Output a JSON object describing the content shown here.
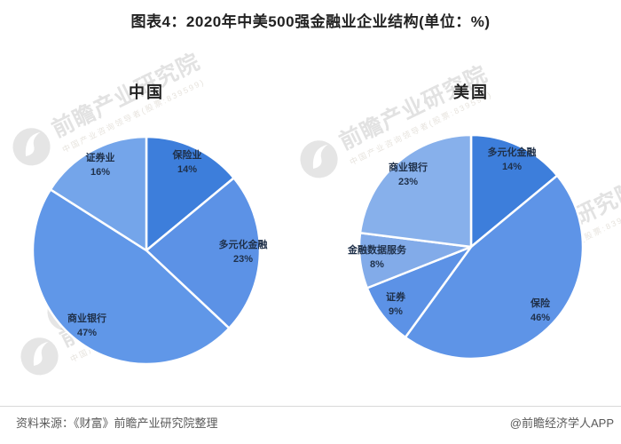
{
  "title": "图表4：2020年中美500强金融业企业结构(单位：%)",
  "watermark": {
    "brand": "前瞻产业研究院",
    "sub": "中国产业咨询领导者(股票:839599)"
  },
  "footer": {
    "source_note": "资料来源：《财富》前瞻产业研究院整理",
    "credit": "@前瞻经济学人APP"
  },
  "chart_data": [
    {
      "type": "pie",
      "title": "中国",
      "unit": "%",
      "direction": "clockwise",
      "start_angle_deg": 0,
      "labels": [
        "保险业",
        "多元化金融",
        "商业银行",
        "证券业"
      ],
      "values": [
        14,
        23,
        47,
        16
      ],
      "colors": [
        "#3d7edb",
        "#5c92e6",
        "#6097e8",
        "#74a5ea"
      ]
    },
    {
      "type": "pie",
      "title": "美国",
      "unit": "%",
      "direction": "clockwise",
      "start_angle_deg": 0,
      "labels": [
        "多元化金融",
        "保险",
        "证券",
        "金融数据服务",
        "商业银行"
      ],
      "values": [
        14,
        46,
        9,
        8,
        23
      ],
      "colors": [
        "#3d7edb",
        "#5e94e7",
        "#5c92e6",
        "#82abe9",
        "#87b0eb"
      ]
    }
  ]
}
